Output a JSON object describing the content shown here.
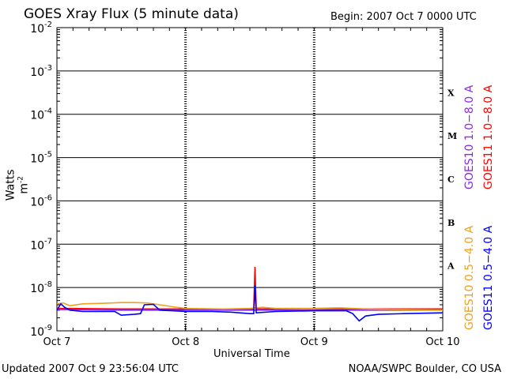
{
  "chart_data": {
    "type": "line",
    "title": "GOES Xray Flux (5 minute data)",
    "begin": "Begin:  2007 Oct 7 0000 UTC",
    "ylabel": "Watts m",
    "ylabel_sup": "-2",
    "xlabel": "Universal Time",
    "scale": "log",
    "ylim": [
      1e-09,
      0.01
    ],
    "xlim": [
      0,
      3
    ],
    "x_ticks": [
      {
        "v": 0,
        "label": "Oct 7"
      },
      {
        "v": 1,
        "label": "Oct 8"
      },
      {
        "v": 2,
        "label": "Oct 9"
      },
      {
        "v": 3,
        "label": "Oct 10"
      }
    ],
    "y_ticks": [
      {
        "exp": -2,
        "base": "10",
        "sup": "-2"
      },
      {
        "exp": -3,
        "base": "10",
        "sup": "-3"
      },
      {
        "exp": -4,
        "base": "10",
        "sup": "-4"
      },
      {
        "exp": -5,
        "base": "10",
        "sup": "-5"
      },
      {
        "exp": -6,
        "base": "10",
        "sup": "-6"
      },
      {
        "exp": -7,
        "base": "10",
        "sup": "-7"
      },
      {
        "exp": -8,
        "base": "10",
        "sup": "-8"
      },
      {
        "exp": -9,
        "base": "10",
        "sup": "-9"
      }
    ],
    "flare_classes": [
      {
        "label": "X",
        "exp": -3.5
      },
      {
        "label": "M",
        "exp": -4.5
      },
      {
        "label": "C",
        "exp": -5.5
      },
      {
        "label": "B",
        "exp": -6.5
      },
      {
        "label": "A",
        "exp": -7.5
      }
    ],
    "legend": [
      {
        "name": "GOES10 1.0−8.0 A",
        "color": "#8a2be2",
        "group": "upper"
      },
      {
        "name": "GOES11 1.0−8.0 A",
        "color": "#ff0000",
        "group": "upper"
      },
      {
        "name": "GOES10 0.5−4.0 A",
        "color": "#f0a020",
        "group": "lower"
      },
      {
        "name": "GOES11 0.5−4.0 A",
        "color": "#0000ff",
        "group": "lower"
      }
    ],
    "series": [
      {
        "name": "GOES11 1.0−8.0 A",
        "color": "#ff0000",
        "points": [
          [
            0,
            3.3e-09
          ],
          [
            0.5,
            3.2e-09
          ],
          [
            1,
            3.2e-09
          ],
          [
            1.5,
            3.2e-09
          ],
          [
            1.53,
            3.2e-09
          ],
          [
            1.54,
            3e-08
          ],
          [
            1.55,
            3.2e-09
          ],
          [
            2,
            3.25e-09
          ],
          [
            2.5,
            3.2e-09
          ],
          [
            3,
            3.2e-09
          ]
        ]
      },
      {
        "name": "GOES10 1.0−8.0 A",
        "color": "#8a2be2",
        "points": [
          [
            0,
            3.1e-09
          ],
          [
            0.5,
            3e-09
          ],
          [
            1,
            3e-09
          ],
          [
            1.5,
            3e-09
          ],
          [
            2,
            3e-09
          ],
          [
            2.5,
            3e-09
          ],
          [
            3,
            3e-09
          ]
        ]
      },
      {
        "name": "GOES10 0.5−4.0 A",
        "color": "#f0a020",
        "points": [
          [
            0,
            4.2e-09
          ],
          [
            0.05,
            4.4e-09
          ],
          [
            0.1,
            3.8e-09
          ],
          [
            0.2,
            4.2e-09
          ],
          [
            0.35,
            4.3e-09
          ],
          [
            0.5,
            4.5e-09
          ],
          [
            0.6,
            4.5e-09
          ],
          [
            0.7,
            4.4e-09
          ],
          [
            0.8,
            4e-09
          ],
          [
            0.9,
            3.6e-09
          ],
          [
            1.0,
            3.3e-09
          ],
          [
            1.3,
            3.2e-09
          ],
          [
            1.5,
            3.3e-09
          ],
          [
            1.6,
            3.5e-09
          ],
          [
            1.7,
            3.3e-09
          ],
          [
            2.0,
            3.3e-09
          ],
          [
            2.2,
            3.4e-09
          ],
          [
            2.4,
            3.2e-09
          ],
          [
            2.6,
            3.1e-09
          ],
          [
            3,
            3e-09
          ]
        ]
      },
      {
        "name": "GOES11 0.5−4.0 A",
        "color": "#0000ff",
        "points": [
          [
            0,
            3e-09
          ],
          [
            0.03,
            4.2e-09
          ],
          [
            0.06,
            3.5e-09
          ],
          [
            0.1,
            3e-09
          ],
          [
            0.2,
            2.8e-09
          ],
          [
            0.45,
            2.8e-09
          ],
          [
            0.5,
            2.3e-09
          ],
          [
            0.6,
            2.4e-09
          ],
          [
            0.65,
            2.5e-09
          ],
          [
            0.68,
            4e-09
          ],
          [
            0.75,
            4.1e-09
          ],
          [
            0.8,
            3e-09
          ],
          [
            0.9,
            2.9e-09
          ],
          [
            1.0,
            2.8e-09
          ],
          [
            1.2,
            2.8e-09
          ],
          [
            1.35,
            2.7e-09
          ],
          [
            1.5,
            2.5e-09
          ],
          [
            1.53,
            2.5e-09
          ],
          [
            1.54,
            1.1e-08
          ],
          [
            1.55,
            2.6e-09
          ],
          [
            1.7,
            2.8e-09
          ],
          [
            2.0,
            2.9e-09
          ],
          [
            2.25,
            2.9e-09
          ],
          [
            2.3,
            2.5e-09
          ],
          [
            2.35,
            1.7e-09
          ],
          [
            2.4,
            2.2e-09
          ],
          [
            2.5,
            2.4e-09
          ],
          [
            2.7,
            2.5e-09
          ],
          [
            3,
            2.6e-09
          ]
        ]
      }
    ]
  },
  "footer": {
    "updated": "Updated 2007 Oct  9 23:56:04 UTC",
    "credit": "NOAA/SWPC Boulder, CO USA"
  }
}
